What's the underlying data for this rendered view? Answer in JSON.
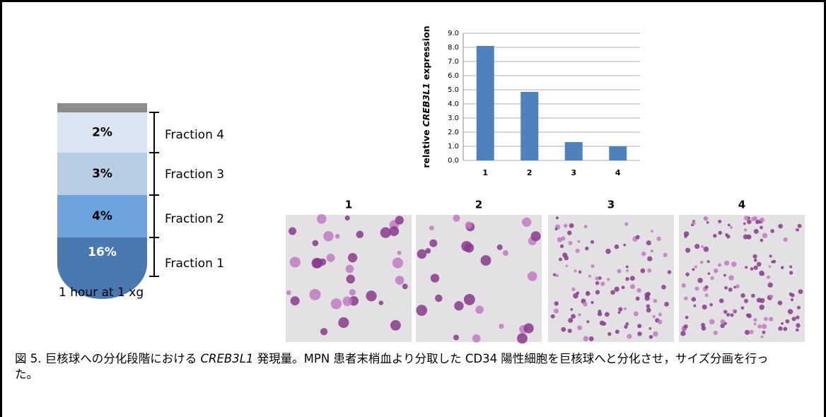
{
  "chart_data": {
    "type": "bar",
    "ylabel": [
      "relative",
      "CREB3L1",
      "expression"
    ],
    "categories": [
      "1",
      "2",
      "3",
      "4"
    ],
    "values": [
      8.1,
      4.85,
      1.3,
      1.0
    ],
    "color": "#4f81bd",
    "ylim": [
      0,
      9
    ],
    "yticks": [
      {
        "value": 0,
        "label": "0.0"
      },
      {
        "value": 1,
        "label": "1.0"
      },
      {
        "value": 2,
        "label": "2.0"
      },
      {
        "value": 3,
        "label": "3.0"
      },
      {
        "value": 4,
        "label": "4.0"
      },
      {
        "value": 5,
        "label": "5.0"
      },
      {
        "value": 6,
        "label": "6.0"
      },
      {
        "value": 7,
        "label": "7.0"
      },
      {
        "value": 8,
        "label": "8.0"
      },
      {
        "value": 9,
        "label": "9.0"
      }
    ],
    "grid": true
  },
  "tube": {
    "layers": [
      {
        "percent": "2%",
        "label": "Fraction 4"
      },
      {
        "percent": "3%",
        "label": "Fraction 3"
      },
      {
        "percent": "4%",
        "label": "Fraction 2"
      },
      {
        "percent": "16%",
        "label": "Fraction 1"
      }
    ],
    "caption": "1 hour at 1 xg"
  },
  "micrographs": [
    "1",
    "2",
    "3",
    "4"
  ],
  "caption": [
    "図 5. 巨核球への分化段階における ",
    "CREB3L1",
    " 発現量。MPN 患者末梢血より分取した CD34 陽性細胞を巨核球へと分化させ，サイズ分画を行った。"
  ]
}
